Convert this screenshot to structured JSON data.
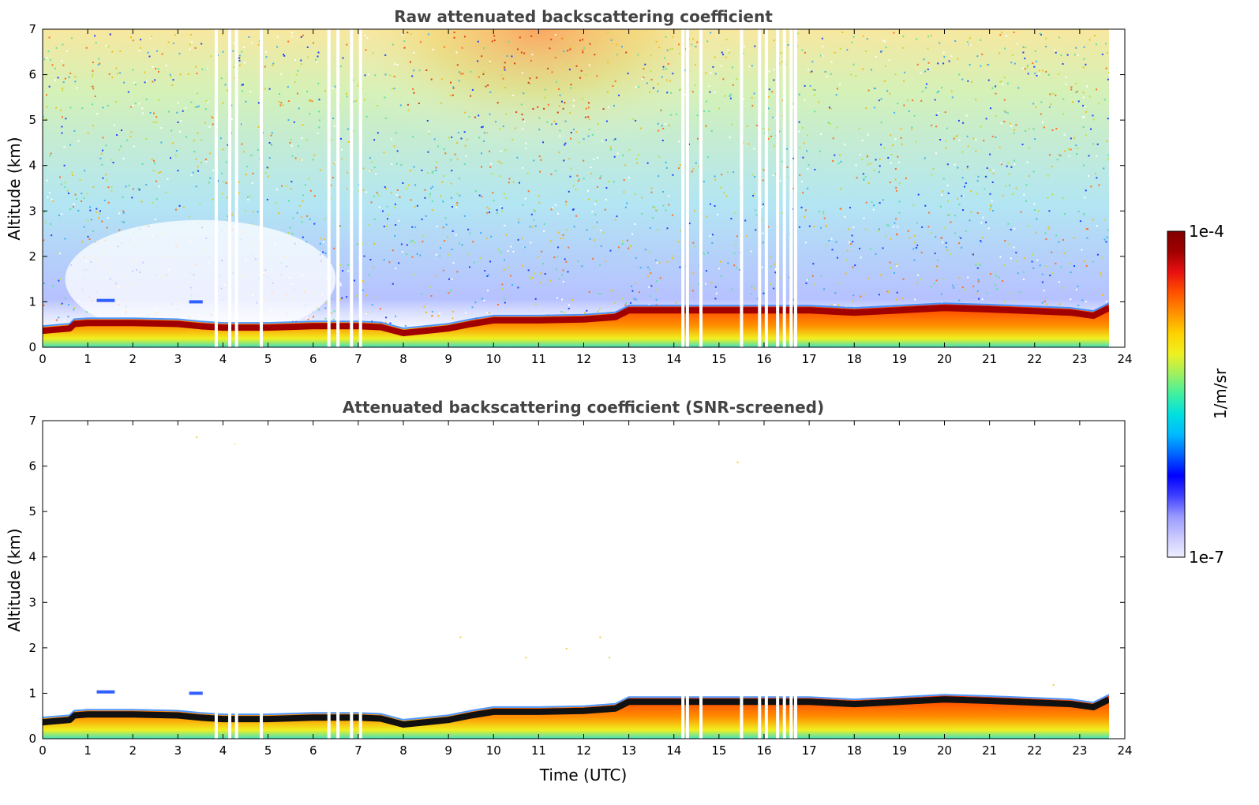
{
  "chart_data": [
    {
      "type": "heatmap",
      "title": "Raw attenuated backscattering coefficient",
      "xlabel": "",
      "ylabel": "Altitude (km)",
      "xlim": [
        0,
        24
      ],
      "ylim": [
        0,
        7
      ],
      "xticks": [
        "0",
        "1",
        "2",
        "3",
        "4",
        "5",
        "6",
        "7",
        "8",
        "9",
        "10",
        "11",
        "12",
        "13",
        "14",
        "15",
        "16",
        "17",
        "18",
        "19",
        "20",
        "21",
        "22",
        "23",
        "24"
      ],
      "yticks": [
        "0",
        "1",
        "2",
        "3",
        "4",
        "5",
        "6",
        "7"
      ],
      "data_end_time": 23.65,
      "gap_times": [
        3.85,
        4.15,
        4.3,
        4.85,
        6.35,
        6.55,
        6.85,
        7.05,
        14.2,
        14.3,
        14.6,
        15.5,
        15.9,
        16.05,
        16.3,
        16.45,
        16.6,
        16.7
      ],
      "boundary_layer_top_km": {
        "time": [
          0,
          0.6,
          0.7,
          1.0,
          2.0,
          3.0,
          3.5,
          4.0,
          5.0,
          6.0,
          7.0,
          7.5,
          8.0,
          8.5,
          9.0,
          9.5,
          10.0,
          11.0,
          12.0,
          12.7,
          13.0,
          14.0,
          15.0,
          16.0,
          17.0,
          18.0,
          19.0,
          20.0,
          21.0,
          22.0,
          22.8,
          23.3,
          23.65
        ],
        "value": [
          0.45,
          0.5,
          0.6,
          0.62,
          0.62,
          0.6,
          0.55,
          0.52,
          0.52,
          0.55,
          0.55,
          0.53,
          0.4,
          0.45,
          0.5,
          0.6,
          0.68,
          0.68,
          0.7,
          0.75,
          0.9,
          0.9,
          0.9,
          0.9,
          0.9,
          0.85,
          0.9,
          0.95,
          0.92,
          0.88,
          0.85,
          0.78,
          0.95
        ]
      }
    },
    {
      "type": "heatmap",
      "title": "Attenuated backscattering coefficient (SNR-screened)",
      "xlabel": "Time (UTC)",
      "ylabel": "Altitude (km)",
      "xlim": [
        0,
        24
      ],
      "ylim": [
        0,
        7
      ],
      "xticks": [
        "0",
        "1",
        "2",
        "3",
        "4",
        "5",
        "6",
        "7",
        "8",
        "9",
        "10",
        "11",
        "12",
        "13",
        "14",
        "15",
        "16",
        "17",
        "18",
        "19",
        "20",
        "21",
        "22",
        "23",
        "24"
      ],
      "yticks": [
        "0",
        "1",
        "2",
        "3",
        "4",
        "5",
        "6",
        "7"
      ],
      "data_end_time": 23.65,
      "gap_times": [
        3.85,
        4.15,
        4.3,
        4.85,
        6.35,
        6.55,
        6.85,
        7.05,
        14.2,
        14.3,
        14.6,
        15.5,
        15.9,
        16.05,
        16.3,
        16.45,
        16.6,
        16.7
      ],
      "boundary_layer_top_km": {
        "time": [
          0,
          0.6,
          0.7,
          1.0,
          2.0,
          3.0,
          3.5,
          4.0,
          5.0,
          6.0,
          7.0,
          7.5,
          8.0,
          8.5,
          9.0,
          9.5,
          10.0,
          11.0,
          12.0,
          12.7,
          13.0,
          14.0,
          15.0,
          16.0,
          17.0,
          18.0,
          19.0,
          20.0,
          21.0,
          22.0,
          22.8,
          23.3,
          23.65
        ],
        "value": [
          0.45,
          0.5,
          0.6,
          0.62,
          0.62,
          0.6,
          0.55,
          0.52,
          0.52,
          0.55,
          0.55,
          0.53,
          0.4,
          0.45,
          0.5,
          0.6,
          0.68,
          0.68,
          0.7,
          0.75,
          0.9,
          0.9,
          0.9,
          0.9,
          0.9,
          0.85,
          0.9,
          0.95,
          0.92,
          0.88,
          0.85,
          0.78,
          0.95
        ]
      }
    }
  ],
  "colorbar": {
    "label": "1/m/sr",
    "max_label": "1e-4",
    "min_label": "1e-7",
    "colors": [
      "#eeeeff",
      "#c8c8ff",
      "#9999ff",
      "#4040ff",
      "#0000ff",
      "#0060ff",
      "#00b8ff",
      "#00e0e0",
      "#40f0a0",
      "#a0f060",
      "#f0f020",
      "#ffd000",
      "#ff9000",
      "#ff5000",
      "#e81010",
      "#a00000",
      "#800000"
    ]
  }
}
